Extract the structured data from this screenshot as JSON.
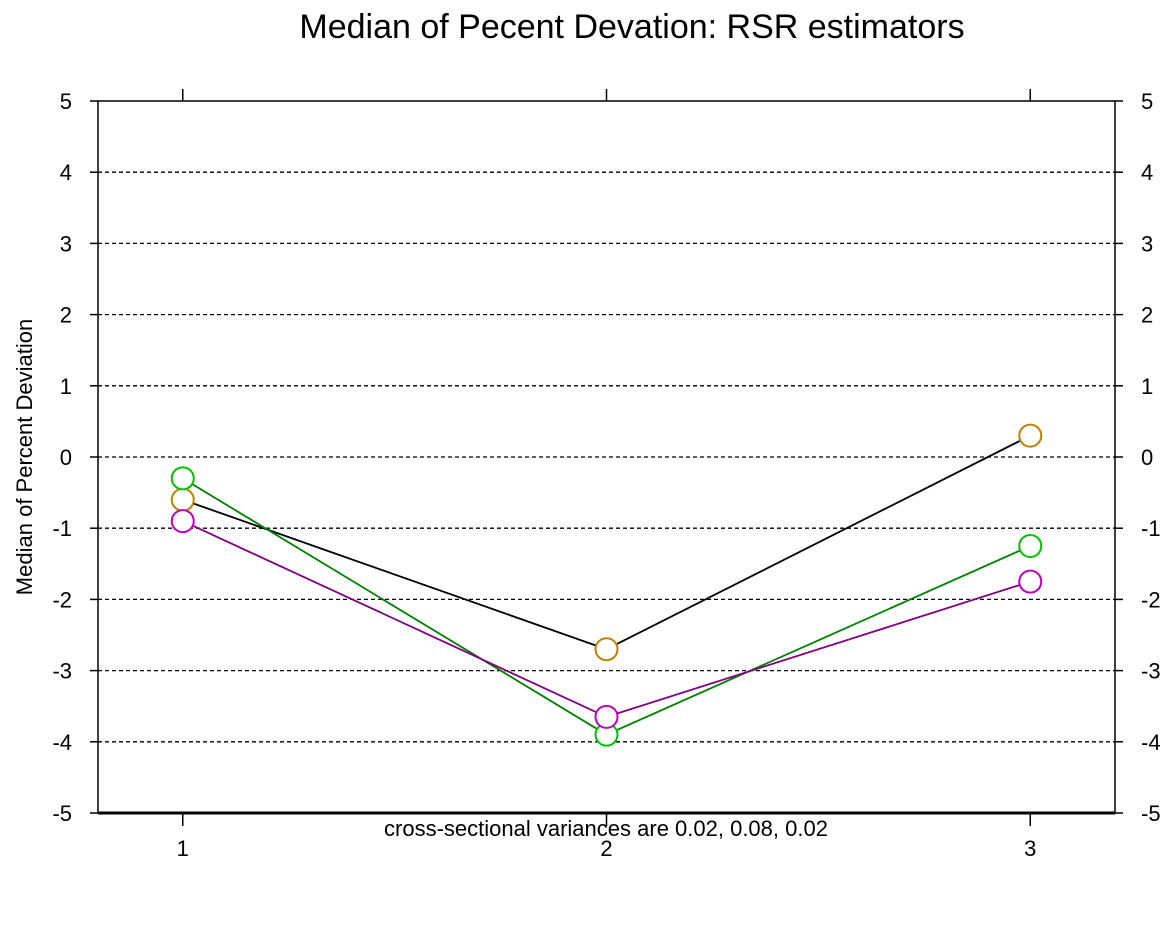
{
  "chart_data": {
    "type": "line",
    "title": "Median of Pecent Devation: RSR estimators",
    "xlabel": "cross-sectional variances are 0.02, 0.08, 0.02",
    "ylabel": "Median of Percent Deviation",
    "categories": [
      "1",
      "2",
      "3"
    ],
    "x": [
      1,
      2,
      3
    ],
    "xlim": [
      0.8,
      3.2
    ],
    "ylim": [
      -5,
      5
    ],
    "y_ticks": [
      5,
      4,
      3,
      2,
      1,
      0,
      -1,
      -2,
      -3,
      -4,
      -5
    ],
    "y_tick_labels": [
      "5",
      "4",
      "3",
      "2",
      "1",
      "0",
      "-1",
      "-2",
      "-3",
      "-4",
      "-5"
    ],
    "x_tick_labels": [
      "1",
      "2",
      "3"
    ],
    "grid": "horizontal dashed",
    "series": [
      {
        "values": [
          -0.6,
          -2.7,
          0.3
        ],
        "line_color": "#000000",
        "marker_color": "#c08000"
      },
      {
        "values": [
          -0.3,
          -3.9,
          -1.25
        ],
        "line_color": "#008000",
        "marker_color": "#00c000"
      },
      {
        "values": [
          -0.9,
          -3.65,
          -1.75
        ],
        "line_color": "#800080",
        "marker_color": "#c000c0"
      }
    ]
  }
}
